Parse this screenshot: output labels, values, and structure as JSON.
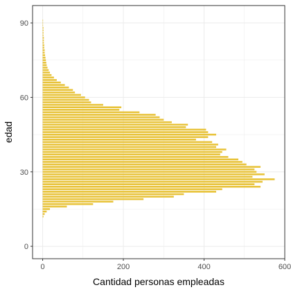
{
  "chart_data": {
    "type": "bar",
    "orientation": "horizontal",
    "title": "",
    "xlabel": "Cantidad personas empleadas",
    "ylabel": "edad",
    "xlim": [
      -25,
      600
    ],
    "ylim": [
      -5,
      97
    ],
    "x_ticks": [
      0,
      200,
      400,
      600
    ],
    "x_tick_labels": [
      "0",
      "200",
      "400",
      "600"
    ],
    "y_ticks": [
      0,
      30,
      60,
      90
    ],
    "y_tick_labels": [
      "0",
      "30",
      "60",
      "90"
    ],
    "grid": true,
    "bar_color": "#E8C33A",
    "categories": [
      12,
      13,
      14,
      15,
      16,
      17,
      18,
      19,
      20,
      21,
      22,
      23,
      24,
      25,
      26,
      27,
      28,
      29,
      30,
      31,
      32,
      33,
      34,
      35,
      36,
      37,
      38,
      39,
      40,
      41,
      42,
      43,
      44,
      45,
      46,
      47,
      48,
      49,
      50,
      51,
      52,
      53,
      54,
      55,
      56,
      57,
      58,
      59,
      60,
      61,
      62,
      63,
      64,
      65,
      66,
      67,
      68,
      69,
      70,
      71,
      72,
      73,
      74,
      75,
      76,
      77,
      78,
      79,
      80,
      81,
      82,
      83,
      84,
      85,
      86,
      87,
      88,
      89,
      90,
      91
    ],
    "values": [
      2,
      5,
      10,
      18,
      60,
      125,
      175,
      250,
      325,
      350,
      430,
      445,
      540,
      525,
      545,
      575,
      520,
      550,
      530,
      525,
      540,
      505,
      495,
      485,
      460,
      440,
      445,
      455,
      430,
      435,
      420,
      380,
      410,
      430,
      410,
      405,
      355,
      360,
      320,
      300,
      290,
      280,
      240,
      190,
      195,
      150,
      120,
      115,
      105,
      95,
      80,
      75,
      65,
      55,
      45,
      35,
      28,
      22,
      18,
      15,
      12,
      10,
      9,
      8,
      7,
      6,
      5,
      5,
      4,
      4,
      3,
      3,
      3,
      2,
      2,
      2,
      2,
      1,
      1,
      1
    ]
  }
}
